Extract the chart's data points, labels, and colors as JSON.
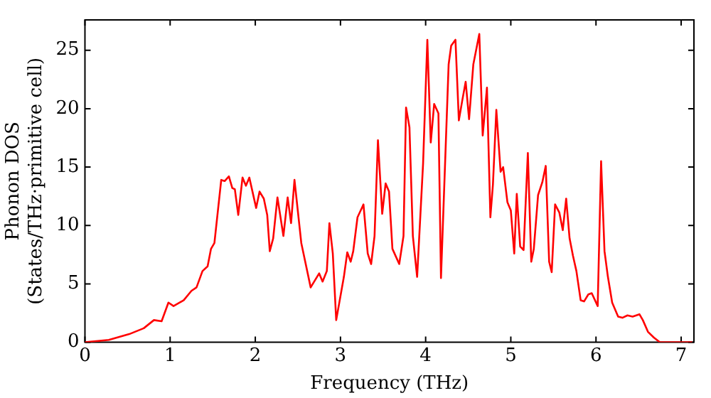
{
  "chart_data": {
    "type": "line",
    "xlabel": "Frequency (THz)",
    "ylabel": "Phonon DOS\n(States/THz·primitive cell)",
    "xlim": [
      0,
      7.15
    ],
    "ylim": [
      0,
      27.6
    ],
    "xticks": [
      0,
      1,
      2,
      3,
      4,
      5,
      6,
      7
    ],
    "yticks": [
      0,
      5,
      10,
      15,
      20,
      25
    ],
    "grid": false,
    "legend": false,
    "marker": "none",
    "line_style": "solid",
    "series": [
      {
        "color": "#ff0000",
        "x": [
          0,
          0.28,
          0.52,
          0.69,
          0.81,
          0.9,
          0.98,
          1.04,
          1.16,
          1.25,
          1.31,
          1.38,
          1.44,
          1.48,
          1.52,
          1.6,
          1.64,
          1.69,
          1.73,
          1.76,
          1.8,
          1.85,
          1.89,
          1.93,
          2.01,
          2.05,
          2.1,
          2.14,
          2.17,
          2.21,
          2.26,
          2.33,
          2.38,
          2.42,
          2.46,
          2.54,
          2.65,
          2.75,
          2.79,
          2.84,
          2.87,
          2.91,
          2.95,
          3.04,
          3.08,
          3.12,
          3.15,
          3.2,
          3.27,
          3.32,
          3.36,
          3.4,
          3.44,
          3.49,
          3.53,
          3.57,
          3.61,
          3.69,
          3.74,
          3.77,
          3.81,
          3.85,
          3.9,
          3.97,
          4.02,
          4.06,
          4.1,
          4.15,
          4.18,
          4.27,
          4.3,
          4.35,
          4.39,
          4.43,
          4.47,
          4.51,
          4.56,
          4.63,
          4.67,
          4.72,
          4.76,
          4.79,
          4.83,
          4.88,
          4.91,
          4.96,
          5.0,
          5.04,
          5.07,
          5.11,
          5.15,
          5.2,
          5.24,
          5.27,
          5.32,
          5.37,
          5.41,
          5.45,
          5.48,
          5.52,
          5.57,
          5.61,
          5.65,
          5.69,
          5.73,
          5.77,
          5.82,
          5.86,
          5.91,
          5.95,
          6.02,
          6.06,
          6.1,
          6.14,
          6.19,
          6.26,
          6.31,
          6.37,
          6.43,
          6.51,
          6.55,
          6.61,
          6.68,
          6.75,
          7.13
        ],
        "values": [
          0,
          0.2,
          0.7,
          1.2,
          1.9,
          1.8,
          3.4,
          3.1,
          3.6,
          4.4,
          4.7,
          6.1,
          6.5,
          8.0,
          8.5,
          13.9,
          13.8,
          14.2,
          13.2,
          13.1,
          10.9,
          14.1,
          13.4,
          14.1,
          11.5,
          12.9,
          12.3,
          10.9,
          7.8,
          8.9,
          12.4,
          9.1,
          12.4,
          10.2,
          13.9,
          8.5,
          4.7,
          5.9,
          5.2,
          6.1,
          10.2,
          7.6,
          1.9,
          5.6,
          7.7,
          6.9,
          7.8,
          10.7,
          11.8,
          7.6,
          6.7,
          9.1,
          17.3,
          11.0,
          13.6,
          12.9,
          8.0,
          6.7,
          9.1,
          20.1,
          18.4,
          9.1,
          5.6,
          15.3,
          25.9,
          17.1,
          20.4,
          19.6,
          5.5,
          23.8,
          25.4,
          25.9,
          19.0,
          20.7,
          22.3,
          19.1,
          23.8,
          26.4,
          17.7,
          21.8,
          10.7,
          13.5,
          19.9,
          14.6,
          15.0,
          12.0,
          11.3,
          7.6,
          12.7,
          8.2,
          7.9,
          16.2,
          6.9,
          8.0,
          12.6,
          13.7,
          15.1,
          6.9,
          6.0,
          11.8,
          11.1,
          9.6,
          12.3,
          8.9,
          7.4,
          6.1,
          3.6,
          3.5,
          4.1,
          4.2,
          3.1,
          15.5,
          7.8,
          5.6,
          3.4,
          2.2,
          2.1,
          2.3,
          2.2,
          2.4,
          1.9,
          0.9,
          0.4,
          0,
          0
        ]
      }
    ]
  }
}
